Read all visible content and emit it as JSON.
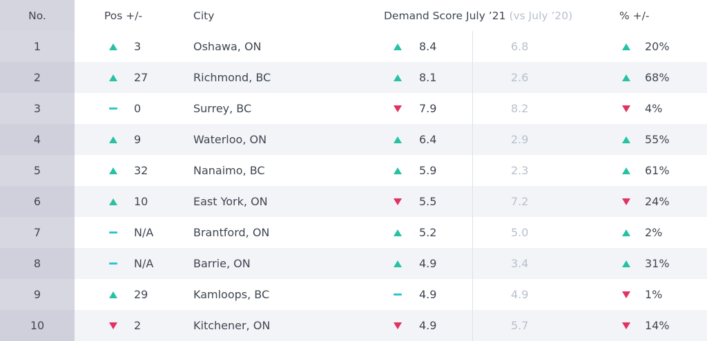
{
  "colors": {
    "up": "#27c1a3",
    "down": "#e23260",
    "same": "#2ec5d3",
    "muted": "#b7c0cb",
    "text": "#3e4650"
  },
  "header": {
    "no": "No.",
    "pos": "Pos +/-",
    "city": "City",
    "score": "Demand Score July ’21",
    "score_sub": "(vs July ’20)",
    "pct": "% +/-"
  },
  "rows": [
    {
      "no": "1",
      "pos_trend": "up",
      "pos": "3",
      "city": "Oshawa, ON",
      "score_trend": "up",
      "score": "8.4",
      "prev": "6.8",
      "pct_trend": "up",
      "pct": "20%"
    },
    {
      "no": "2",
      "pos_trend": "up",
      "pos": "27",
      "city": "Richmond, BC",
      "score_trend": "up",
      "score": "8.1",
      "prev": "2.6",
      "pct_trend": "up",
      "pct": "68%"
    },
    {
      "no": "3",
      "pos_trend": "same",
      "pos": "0",
      "city": "Surrey, BC",
      "score_trend": "down",
      "score": "7.9",
      "prev": "8.2",
      "pct_trend": "down",
      "pct": "4%"
    },
    {
      "no": "4",
      "pos_trend": "up",
      "pos": "9",
      "city": "Waterloo, ON",
      "score_trend": "up",
      "score": "6.4",
      "prev": "2.9",
      "pct_trend": "up",
      "pct": "55%"
    },
    {
      "no": "5",
      "pos_trend": "up",
      "pos": "32",
      "city": "Nanaimo, BC",
      "score_trend": "up",
      "score": "5.9",
      "prev": "2.3",
      "pct_trend": "up",
      "pct": "61%"
    },
    {
      "no": "6",
      "pos_trend": "up",
      "pos": "10",
      "city": "East York, ON",
      "score_trend": "down",
      "score": "5.5",
      "prev": "7.2",
      "pct_trend": "down",
      "pct": "24%"
    },
    {
      "no": "7",
      "pos_trend": "same",
      "pos": "N/A",
      "city": "Brantford, ON",
      "score_trend": "up",
      "score": "5.2",
      "prev": "5.0",
      "pct_trend": "up",
      "pct": "2%"
    },
    {
      "no": "8",
      "pos_trend": "same",
      "pos": "N/A",
      "city": "Barrie, ON",
      "score_trend": "up",
      "score": "4.9",
      "prev": "3.4",
      "pct_trend": "up",
      "pct": "31%"
    },
    {
      "no": "9",
      "pos_trend": "up",
      "pos": "29",
      "city": "Kamloops, BC",
      "score_trend": "same",
      "score": "4.9",
      "prev": "4.9",
      "pct_trend": "down",
      "pct": "1%"
    },
    {
      "no": "10",
      "pos_trend": "down",
      "pos": "2",
      "city": "Kitchener, ON",
      "score_trend": "down",
      "score": "4.9",
      "prev": "5.7",
      "pct_trend": "down",
      "pct": "14%"
    }
  ]
}
